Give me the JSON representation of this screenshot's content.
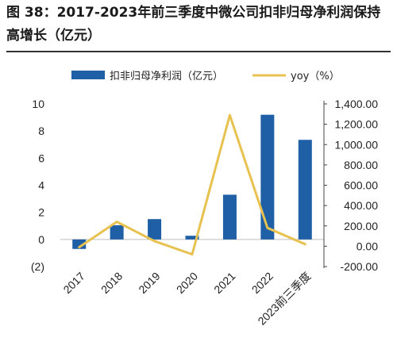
{
  "figure": {
    "title": "图 38：2017-2023年前三季度中微公司扣非归母净利润保持高增长（亿元）"
  },
  "chart_data": {
    "type": "bar+line",
    "categories": [
      "2017",
      "2018",
      "2019",
      "2020",
      "2021",
      "2022",
      "2023前三季度"
    ],
    "series": [
      {
        "name": "扣非归母净利润（亿元）",
        "type": "bar",
        "axis": "left",
        "color": "#1f5fa6",
        "values": [
          -0.7,
          1.05,
          1.5,
          0.27,
          3.3,
          9.2,
          7.35
        ]
      },
      {
        "name": "yoy（%）",
        "type": "line",
        "axis": "right",
        "color": "#e8c250",
        "values": [
          -10,
          240,
          50,
          -80,
          1290,
          180,
          20
        ]
      }
    ],
    "left_axis": {
      "ylim": [
        -2,
        10
      ],
      "ticks": [
        -2,
        0,
        2,
        4,
        6,
        8,
        10
      ],
      "tick_labels": [
        "(2)",
        "0",
        "2",
        "4",
        "6",
        "8",
        "10"
      ],
      "negative_color": "#c00000"
    },
    "right_axis": {
      "ylim": [
        -200,
        1400
      ],
      "ticks": [
        -200,
        0,
        200,
        400,
        600,
        800,
        1000,
        1200,
        1400
      ],
      "tick_labels": [
        "-200.00",
        "0.00",
        "200.00",
        "400.00",
        "600.00",
        "800.00",
        "1,000.00",
        "1,200.00",
        "1,400.00"
      ]
    },
    "legend_position": "top"
  }
}
